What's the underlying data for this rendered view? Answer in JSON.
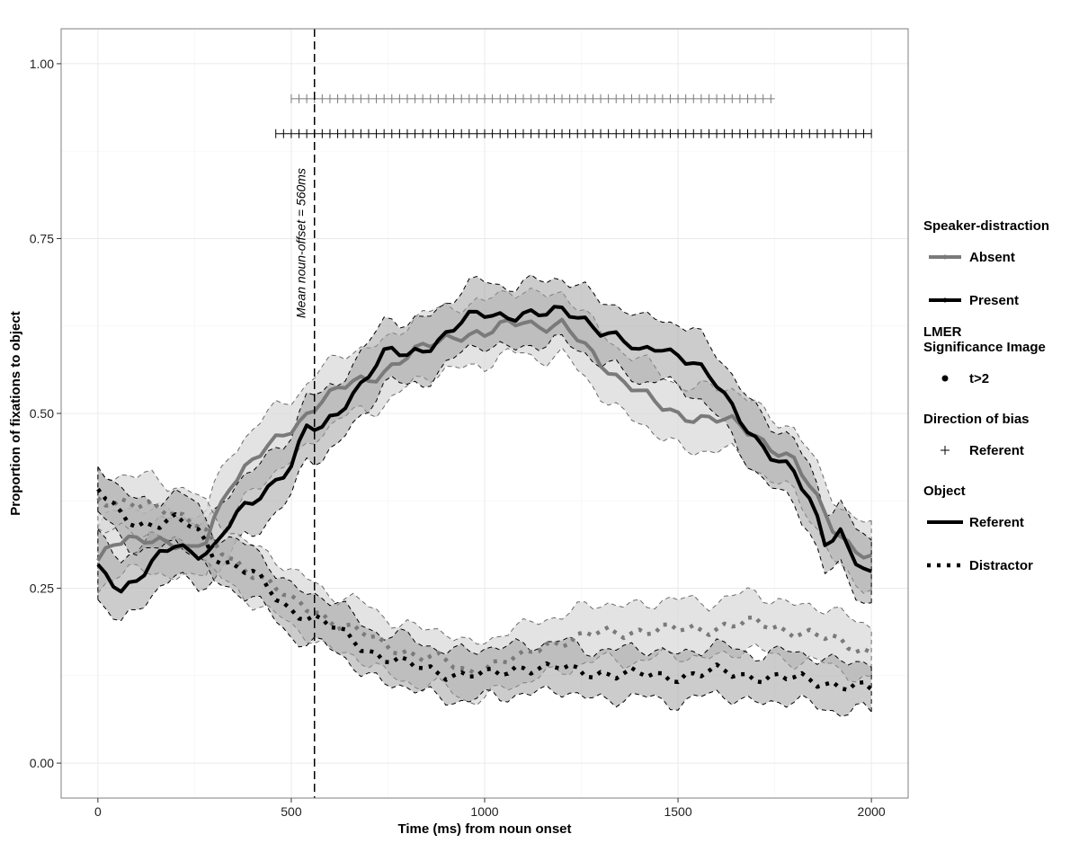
{
  "chart_data": {
    "type": "line",
    "title": "",
    "xlabel": "Time (ms) from noun onset",
    "ylabel": "Proportion of fixations to object",
    "xlim": [
      -95,
      2095
    ],
    "ylim": [
      -0.05,
      1.05
    ],
    "x_ticks": [
      0,
      500,
      1000,
      1500,
      2000
    ],
    "x_tick_labels": [
      "0",
      "500",
      "1000",
      "1500",
      "2000"
    ],
    "y_ticks": [
      0,
      0.25,
      0.5,
      0.75,
      1.0
    ],
    "y_tick_labels": [
      "0.00",
      "0.25",
      "0.50",
      "0.75",
      "1.00"
    ],
    "grid": true,
    "legend_position": "right",
    "colors": {
      "absent": "#7a7a7a",
      "present": "#000000",
      "ribbon_absent": "#d9d9d9",
      "ribbon_present": "#9a9a9a"
    },
    "vline": {
      "x": 560,
      "label": "Mean noun-offset = 560ms"
    },
    "significance_rows": [
      {
        "group": "Absent",
        "y": 0.95,
        "x_start": 500,
        "x_end": 1750,
        "step": 20,
        "marker": "+"
      },
      {
        "group": "Present",
        "y": 0.9,
        "x_start": 460,
        "x_end": 2000,
        "step": 20,
        "marker": "+"
      }
    ],
    "series": [
      {
        "name": "Absent",
        "object": "Referent",
        "keypoints": [
          [
            0,
            0.285
          ],
          [
            40,
            0.31
          ],
          [
            80,
            0.32
          ],
          [
            120,
            0.325
          ],
          [
            160,
            0.32
          ],
          [
            200,
            0.31
          ],
          [
            240,
            0.3
          ],
          [
            280,
            0.32
          ],
          [
            300,
            0.35
          ],
          [
            340,
            0.4
          ],
          [
            380,
            0.42
          ],
          [
            420,
            0.44
          ],
          [
            460,
            0.46
          ],
          [
            500,
            0.48
          ],
          [
            540,
            0.5
          ],
          [
            580,
            0.52
          ],
          [
            620,
            0.53
          ],
          [
            660,
            0.545
          ],
          [
            700,
            0.55
          ],
          [
            750,
            0.565
          ],
          [
            800,
            0.58
          ],
          [
            850,
            0.595
          ],
          [
            900,
            0.61
          ],
          [
            950,
            0.615
          ],
          [
            1000,
            0.61
          ],
          [
            1050,
            0.625
          ],
          [
            1100,
            0.635
          ],
          [
            1150,
            0.625
          ],
          [
            1200,
            0.625
          ],
          [
            1250,
            0.6
          ],
          [
            1300,
            0.575
          ],
          [
            1350,
            0.55
          ],
          [
            1400,
            0.53
          ],
          [
            1450,
            0.51
          ],
          [
            1500,
            0.5
          ],
          [
            1550,
            0.495
          ],
          [
            1600,
            0.49
          ],
          [
            1650,
            0.485
          ],
          [
            1700,
            0.47
          ],
          [
            1750,
            0.45
          ],
          [
            1800,
            0.43
          ],
          [
            1850,
            0.385
          ],
          [
            1900,
            0.34
          ],
          [
            1950,
            0.31
          ],
          [
            2000,
            0.29
          ]
        ],
        "band_halfwidth": 0.045
      },
      {
        "name": "Present",
        "object": "Referent",
        "keypoints": [
          [
            0,
            0.275
          ],
          [
            30,
            0.265
          ],
          [
            60,
            0.25
          ],
          [
            100,
            0.265
          ],
          [
            150,
            0.29
          ],
          [
            200,
            0.31
          ],
          [
            250,
            0.3
          ],
          [
            300,
            0.31
          ],
          [
            350,
            0.35
          ],
          [
            400,
            0.37
          ],
          [
            450,
            0.4
          ],
          [
            500,
            0.43
          ],
          [
            540,
            0.48
          ],
          [
            580,
            0.475
          ],
          [
            620,
            0.5
          ],
          [
            660,
            0.53
          ],
          [
            700,
            0.56
          ],
          [
            750,
            0.59
          ],
          [
            800,
            0.58
          ],
          [
            850,
            0.595
          ],
          [
            900,
            0.615
          ],
          [
            950,
            0.635
          ],
          [
            1000,
            0.64
          ],
          [
            1050,
            0.64
          ],
          [
            1100,
            0.645
          ],
          [
            1150,
            0.64
          ],
          [
            1200,
            0.645
          ],
          [
            1250,
            0.64
          ],
          [
            1300,
            0.62
          ],
          [
            1350,
            0.605
          ],
          [
            1400,
            0.585
          ],
          [
            1450,
            0.6
          ],
          [
            1500,
            0.585
          ],
          [
            1550,
            0.565
          ],
          [
            1600,
            0.54
          ],
          [
            1650,
            0.505
          ],
          [
            1700,
            0.465
          ],
          [
            1750,
            0.43
          ],
          [
            1800,
            0.415
          ],
          [
            1850,
            0.37
          ],
          [
            1880,
            0.32
          ],
          [
            1920,
            0.33
          ],
          [
            1950,
            0.29
          ],
          [
            2000,
            0.265
          ]
        ],
        "band_halfwidth": 0.045
      },
      {
        "name": "Absent",
        "object": "Distractor",
        "keypoints": [
          [
            0,
            0.38
          ],
          [
            50,
            0.37
          ],
          [
            100,
            0.365
          ],
          [
            150,
            0.37
          ],
          [
            200,
            0.36
          ],
          [
            250,
            0.345
          ],
          [
            300,
            0.31
          ],
          [
            350,
            0.29
          ],
          [
            400,
            0.275
          ],
          [
            450,
            0.255
          ],
          [
            500,
            0.23
          ],
          [
            560,
            0.22
          ],
          [
            620,
            0.2
          ],
          [
            680,
            0.185
          ],
          [
            740,
            0.17
          ],
          [
            800,
            0.16
          ],
          [
            850,
            0.15
          ],
          [
            900,
            0.145
          ],
          [
            950,
            0.13
          ],
          [
            1000,
            0.14
          ],
          [
            1050,
            0.145
          ],
          [
            1100,
            0.15
          ],
          [
            1150,
            0.17
          ],
          [
            1200,
            0.175
          ],
          [
            1250,
            0.18
          ],
          [
            1300,
            0.185
          ],
          [
            1400,
            0.19
          ],
          [
            1500,
            0.19
          ],
          [
            1600,
            0.195
          ],
          [
            1700,
            0.2
          ],
          [
            1800,
            0.19
          ],
          [
            1900,
            0.175
          ],
          [
            2000,
            0.16
          ]
        ],
        "band_halfwidth": 0.04
      },
      {
        "name": "Present",
        "object": "Distractor",
        "keypoints": [
          [
            0,
            0.39
          ],
          [
            50,
            0.36
          ],
          [
            100,
            0.345
          ],
          [
            150,
            0.34
          ],
          [
            200,
            0.345
          ],
          [
            250,
            0.34
          ],
          [
            300,
            0.3
          ],
          [
            350,
            0.28
          ],
          [
            400,
            0.27
          ],
          [
            450,
            0.245
          ],
          [
            500,
            0.22
          ],
          [
            560,
            0.205
          ],
          [
            620,
            0.19
          ],
          [
            680,
            0.17
          ],
          [
            740,
            0.15
          ],
          [
            800,
            0.14
          ],
          [
            850,
            0.135
          ],
          [
            900,
            0.13
          ],
          [
            950,
            0.125
          ],
          [
            1000,
            0.125
          ],
          [
            1050,
            0.13
          ],
          [
            1100,
            0.14
          ],
          [
            1150,
            0.135
          ],
          [
            1200,
            0.135
          ],
          [
            1250,
            0.13
          ],
          [
            1300,
            0.13
          ],
          [
            1400,
            0.125
          ],
          [
            1500,
            0.125
          ],
          [
            1600,
            0.13
          ],
          [
            1700,
            0.125
          ],
          [
            1800,
            0.12
          ],
          [
            1900,
            0.115
          ],
          [
            2000,
            0.105
          ]
        ],
        "band_halfwidth": 0.035
      }
    ]
  },
  "legend": {
    "groups": [
      {
        "title": "Speaker-distraction",
        "items": [
          {
            "label": "Absent",
            "key": "line-absent"
          },
          {
            "label": "Present",
            "key": "line-present"
          }
        ]
      },
      {
        "title": "LMER\nSignificance Image",
        "items": [
          {
            "label": "t>2",
            "key": "dot"
          }
        ]
      },
      {
        "title": "Direction of bias",
        "items": [
          {
            "label": "Referent",
            "key": "plus"
          }
        ]
      },
      {
        "title": "Object",
        "items": [
          {
            "label": "Referent",
            "key": "solid"
          },
          {
            "label": "Distractor",
            "key": "dotted"
          }
        ]
      }
    ]
  }
}
